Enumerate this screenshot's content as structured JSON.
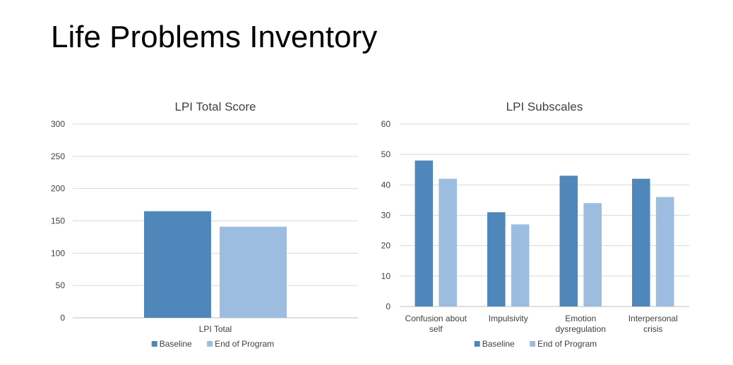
{
  "slide": {
    "title": "Life Problems Inventory"
  },
  "colors": {
    "baseline": "#4f87bb",
    "end": "#9cbde0",
    "grid": "#d9d9d9",
    "axis": "#bfbfbf",
    "text": "#404040"
  },
  "chart_data": [
    {
      "type": "bar",
      "title": "LPI Total Score",
      "categories": [
        "LPI Total"
      ],
      "series": [
        {
          "name": "Baseline",
          "values": [
            165
          ]
        },
        {
          "name": "End of Program",
          "values": [
            141
          ]
        }
      ],
      "ylim": [
        0,
        300
      ],
      "yticks": [
        0,
        50,
        100,
        150,
        200,
        250,
        300
      ],
      "grid": true,
      "legend": "bottom"
    },
    {
      "type": "bar",
      "title": "LPI Subscales",
      "categories": [
        [
          "Confusion about",
          "self"
        ],
        [
          "Impulsivity"
        ],
        [
          "Emotion",
          "dysregulation"
        ],
        [
          "Interpersonal",
          "crisis"
        ]
      ],
      "series": [
        {
          "name": "Baseline",
          "values": [
            48,
            31,
            43,
            42
          ]
        },
        {
          "name": "End of Program",
          "values": [
            42,
            27,
            34,
            36
          ]
        }
      ],
      "ylim": [
        0,
        60
      ],
      "yticks": [
        0,
        10,
        20,
        30,
        40,
        50,
        60
      ],
      "grid": true,
      "legend": "bottom"
    }
  ]
}
